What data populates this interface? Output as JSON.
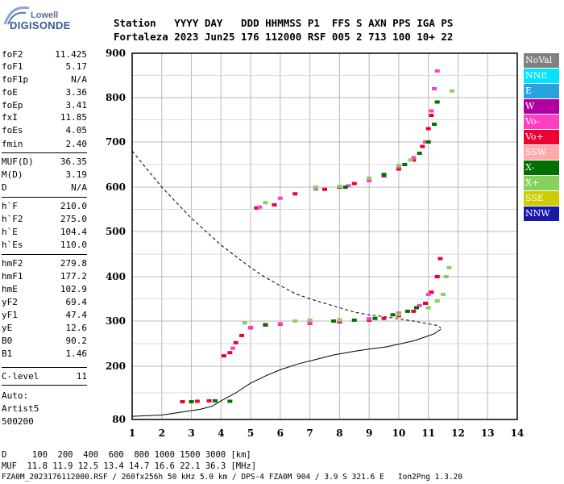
{
  "logo": {
    "top": "Lowell",
    "bottom": "DIGISONDE"
  },
  "header": {
    "line1": "Station   YYYY DAY   DDD HHMMSS P1  FFS S AXN PPS IGA PS",
    "line2": "Fortaleza 2023 Jun25 176 112000 RSF 005 2 713 100 10+ 22"
  },
  "params": [
    {
      "k": "foF2",
      "v": "11.425"
    },
    {
      "k": "foF1",
      "v": "5.17"
    },
    {
      "k": "foF1p",
      "v": "N/A"
    },
    {
      "k": "foE",
      "v": "3.36"
    },
    {
      "k": "foEp",
      "v": "3.41"
    },
    {
      "k": "fxI",
      "v": "11.85"
    },
    {
      "k": "foEs",
      "v": "4.05"
    },
    {
      "k": "fmin",
      "v": "2.40"
    },
    {
      "k": "MUF(D)",
      "v": "36.35"
    },
    {
      "k": "M(D)",
      "v": "3.19"
    },
    {
      "k": "D",
      "v": "N/A"
    },
    {
      "k": "h`F",
      "v": "210.0"
    },
    {
      "k": "h`F2",
      "v": "275.0"
    },
    {
      "k": "h`E",
      "v": "104.4"
    },
    {
      "k": "h`Es",
      "v": "110.0"
    },
    {
      "k": "hmF2",
      "v": "279.8"
    },
    {
      "k": "hmF1",
      "v": "177.2"
    },
    {
      "k": "hmE",
      "v": "102.9"
    },
    {
      "k": "yF2",
      "v": "69.4"
    },
    {
      "k": "yF1",
      "v": "47.4"
    },
    {
      "k": "yE",
      "v": "12.6"
    },
    {
      "k": "B0",
      "v": "90.2"
    },
    {
      "k": "B1",
      "v": "1.46"
    },
    {
      "k": "C-level",
      "v": "11"
    }
  ],
  "autoscaler": {
    "line1": "Auto:",
    "line2": "Artist5",
    "line3": "500200"
  },
  "legend": [
    {
      "label": "NoVal",
      "color": "#808080"
    },
    {
      "label": "NNE",
      "color": "#00e5ff"
    },
    {
      "label": "E",
      "color": "#29a3e0"
    },
    {
      "label": "W",
      "color": "#b0009f"
    },
    {
      "label": "Vo-",
      "color": "#ff3fbf"
    },
    {
      "label": "Vo+",
      "color": "#ee0033"
    },
    {
      "label": "SSW",
      "color": "#ffaaaa"
    },
    {
      "label": "X-",
      "color": "#007000"
    },
    {
      "label": "X+",
      "color": "#88d060"
    },
    {
      "label": "SSE",
      "color": "#cccc00"
    },
    {
      "label": "NNW",
      "color": "#1a1aaa"
    }
  ],
  "footer": {
    "line1": "D     100  200  400  600  800 1000 1500 3000 [km]",
    "line2": "MUF  11.8 11.9 12.5 13.4 14.7 16.6 22.1 36.3 [MHz]",
    "line3": "FZA0M_2023176112000.RSF / 260fx256h 50 kHz 5.0 km / DPS-4 FZA0M 904 / 3.9 S 321.6 E   Ion2Png 1.3.20"
  },
  "chart_data": {
    "type": "scatter",
    "xlim": [
      1,
      14
    ],
    "ylim": [
      80,
      900
    ],
    "x_ticks": [
      "1",
      "2",
      "3",
      "4",
      "5",
      "6",
      "7",
      "8",
      "9",
      "10",
      "11",
      "12",
      "13",
      "14"
    ],
    "y_ticks": [
      "80",
      "200",
      "300",
      "400",
      "500",
      "600",
      "700",
      "800",
      "900"
    ],
    "grid": true,
    "series": [
      {
        "name": "Vo+",
        "color": "#ee0033",
        "points": [
          [
            2.7,
            120
          ],
          [
            3.2,
            121
          ],
          [
            3.6,
            122
          ],
          [
            4.1,
            223
          ],
          [
            4.3,
            230
          ],
          [
            4.5,
            252
          ],
          [
            4.7,
            268
          ],
          [
            5.0,
            285
          ],
          [
            5.5,
            291
          ],
          [
            6.0,
            293
          ],
          [
            7.0,
            295
          ],
          [
            8.0,
            298
          ],
          [
            9.0,
            302
          ],
          [
            9.5,
            306
          ],
          [
            10.0,
            312
          ],
          [
            10.5,
            322
          ],
          [
            10.9,
            340
          ],
          [
            11.1,
            365
          ],
          [
            11.3,
            400
          ],
          [
            11.4,
            440
          ],
          [
            5.2,
            553
          ],
          [
            5.8,
            560
          ],
          [
            6.5,
            585
          ],
          [
            7.5,
            595
          ],
          [
            8.0,
            600
          ],
          [
            8.5,
            608
          ],
          [
            9.5,
            625
          ],
          [
            10.0,
            640
          ],
          [
            10.5,
            660
          ],
          [
            10.8,
            690
          ],
          [
            11.0,
            730
          ],
          [
            11.1,
            760
          ]
        ]
      },
      {
        "name": "Vo-",
        "color": "#ff3fbf",
        "points": [
          [
            4.4,
            240
          ],
          [
            5.0,
            286
          ],
          [
            6.0,
            294
          ],
          [
            7.0,
            297
          ],
          [
            8.0,
            301
          ],
          [
            9.0,
            305
          ],
          [
            10.0,
            318
          ],
          [
            10.7,
            335
          ],
          [
            11.0,
            360
          ],
          [
            5.3,
            555
          ],
          [
            6.0,
            575
          ],
          [
            7.2,
            596
          ],
          [
            8.3,
            603
          ],
          [
            9.0,
            614
          ],
          [
            10.0,
            645
          ],
          [
            10.5,
            665
          ],
          [
            10.9,
            700
          ],
          [
            11.1,
            770
          ],
          [
            11.2,
            820
          ],
          [
            11.3,
            860
          ]
        ]
      },
      {
        "name": "X-",
        "color": "#007000",
        "points": [
          [
            3.0,
            120
          ],
          [
            3.8,
            122
          ],
          [
            4.3,
            121
          ],
          [
            5.5,
            292
          ],
          [
            7.8,
            300
          ],
          [
            8.5,
            302
          ],
          [
            9.2,
            306
          ],
          [
            9.8,
            314
          ],
          [
            10.3,
            322
          ],
          [
            10.6,
            330
          ],
          [
            8.2,
            600
          ],
          [
            9.5,
            628
          ],
          [
            10.2,
            650
          ],
          [
            10.7,
            675
          ],
          [
            11.0,
            700
          ],
          [
            11.2,
            740
          ],
          [
            11.3,
            790
          ]
        ]
      },
      {
        "name": "X+",
        "color": "#88d060",
        "points": [
          [
            4.8,
            296
          ],
          [
            6.5,
            300
          ],
          [
            7.0,
            302
          ],
          [
            8.0,
            303
          ],
          [
            10.0,
            315
          ],
          [
            11.0,
            330
          ],
          [
            11.3,
            345
          ],
          [
            11.5,
            360
          ],
          [
            11.6,
            400
          ],
          [
            11.7,
            420
          ],
          [
            5.5,
            565
          ],
          [
            7.2,
            600
          ],
          [
            8.0,
            602
          ],
          [
            9.0,
            620
          ],
          [
            10.0,
            648
          ],
          [
            10.4,
            660
          ],
          [
            11.8,
            815
          ]
        ]
      }
    ],
    "lines": [
      {
        "name": "profile",
        "style": "solid",
        "points": [
          [
            1.0,
            87
          ],
          [
            2.0,
            90
          ],
          [
            2.6,
            96
          ],
          [
            3.3,
            103
          ],
          [
            3.7,
            110
          ],
          [
            4.0,
            122
          ],
          [
            4.5,
            140
          ],
          [
            5.0,
            162
          ],
          [
            5.5,
            178
          ],
          [
            6.0,
            192
          ],
          [
            6.6,
            205
          ],
          [
            7.2,
            215
          ],
          [
            7.8,
            225
          ],
          [
            8.5,
            233
          ],
          [
            9.0,
            238
          ],
          [
            9.6,
            243
          ],
          [
            10.0,
            249
          ],
          [
            10.5,
            256
          ],
          [
            10.9,
            265
          ],
          [
            11.2,
            272
          ],
          [
            11.42,
            282
          ]
        ]
      },
      {
        "name": "MUF",
        "style": "dashed",
        "points": [
          [
            1.0,
            680
          ],
          [
            1.5,
            640
          ],
          [
            2.0,
            600
          ],
          [
            2.5,
            565
          ],
          [
            3.0,
            530
          ],
          [
            3.5,
            500
          ],
          [
            4.0,
            470
          ],
          [
            4.5,
            445
          ],
          [
            5.0,
            420
          ],
          [
            5.5,
            398
          ],
          [
            6.0,
            380
          ],
          [
            6.5,
            362
          ],
          [
            7.0,
            350
          ],
          [
            7.5,
            340
          ],
          [
            8.0,
            330
          ],
          [
            8.5,
            320
          ],
          [
            9.0,
            314
          ],
          [
            9.5,
            310
          ],
          [
            10.0,
            305
          ],
          [
            10.5,
            300
          ],
          [
            11.0,
            294
          ],
          [
            11.3,
            290
          ],
          [
            11.42,
            285
          ]
        ]
      }
    ]
  }
}
